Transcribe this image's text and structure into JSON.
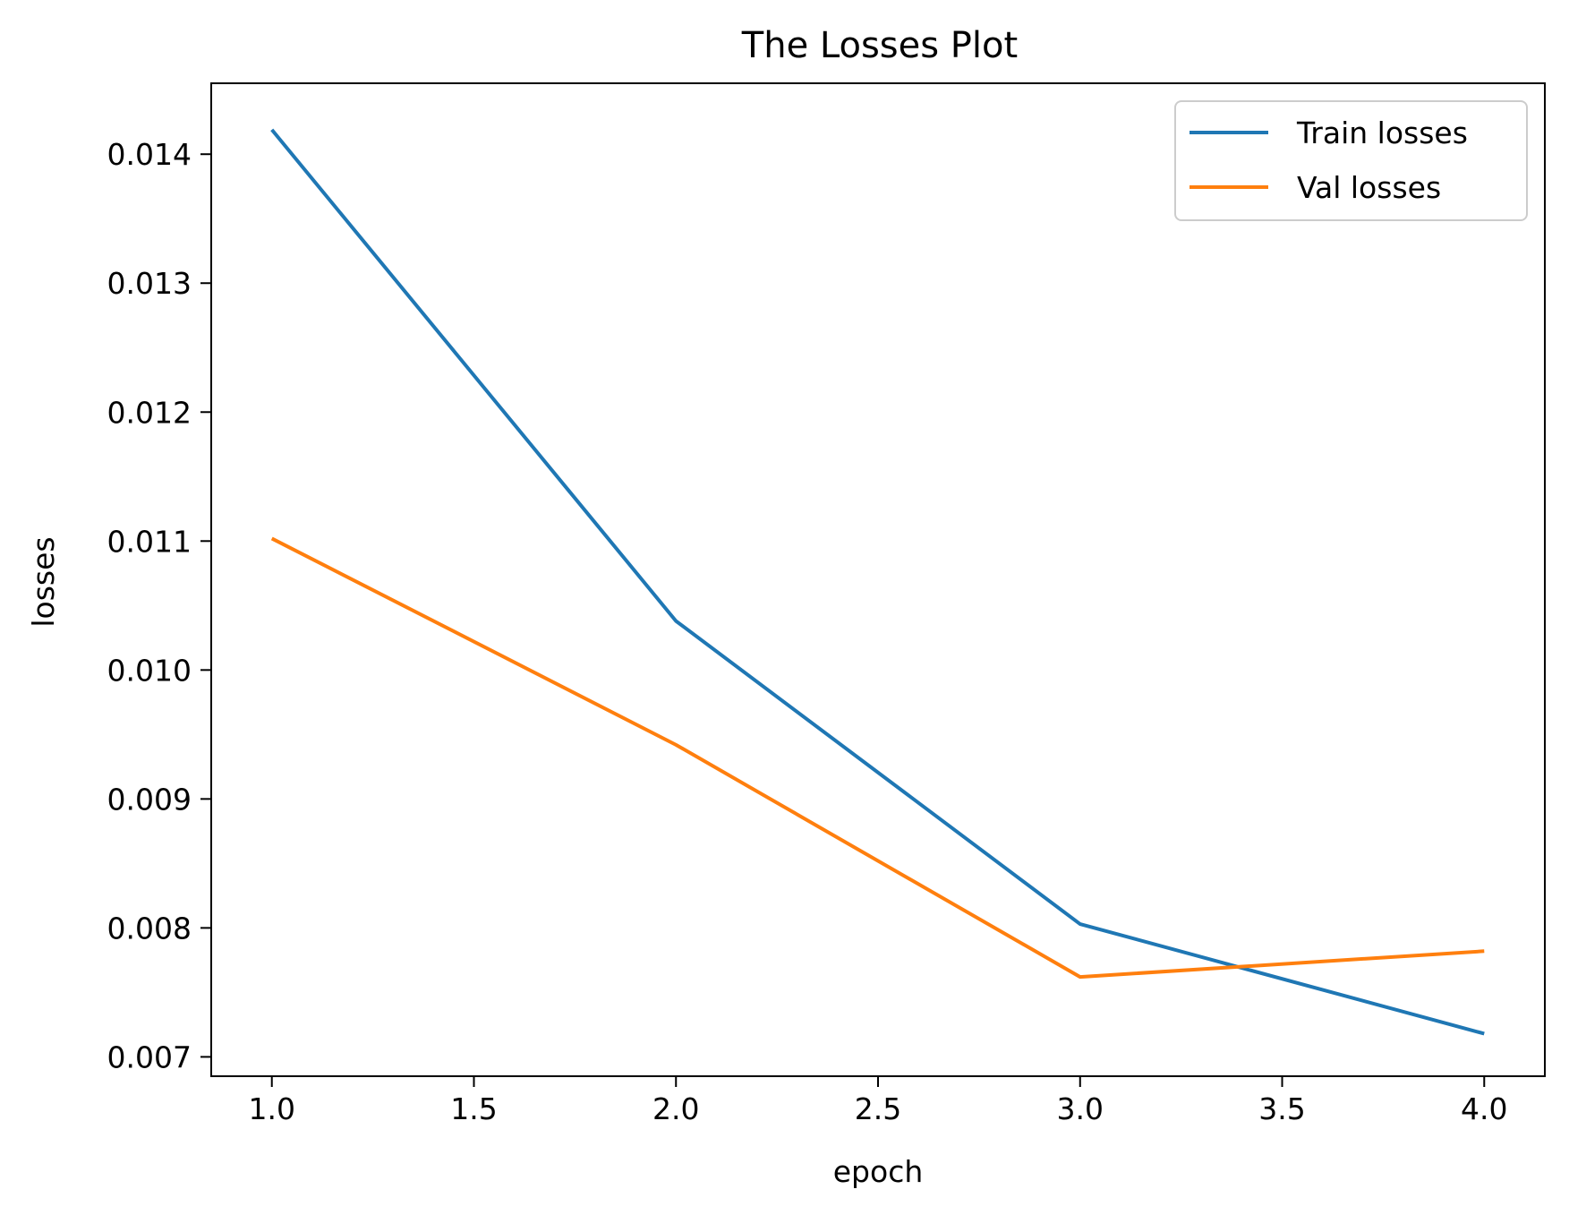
{
  "chart_data": {
    "type": "line",
    "title": "The Losses Plot",
    "xlabel": "epoch",
    "ylabel": "losses",
    "x": [
      1.0,
      2.0,
      3.0,
      4.0
    ],
    "xlim": [
      0.85,
      4.15
    ],
    "ylim": [
      0.00685,
      0.01455
    ],
    "xticks": [
      1.0,
      1.5,
      2.0,
      2.5,
      3.0,
      3.5,
      4.0
    ],
    "xtick_labels": [
      "1.0",
      "1.5",
      "2.0",
      "2.5",
      "3.0",
      "3.5",
      "4.0"
    ],
    "yticks": [
      0.007,
      0.008,
      0.009,
      0.01,
      0.011,
      0.012,
      0.013,
      0.014
    ],
    "ytick_labels": [
      "0.007",
      "0.008",
      "0.009",
      "0.010",
      "0.011",
      "0.012",
      "0.013",
      "0.014"
    ],
    "grid": false,
    "legend_position": "top-right",
    "series": [
      {
        "name": "Train losses",
        "color": "#1f77b4",
        "values": [
          0.01419,
          0.01038,
          0.00803,
          0.00718
        ]
      },
      {
        "name": "Val losses",
        "color": "#ff7f0e",
        "values": [
          0.01102,
          0.00942,
          0.00762,
          0.00782
        ]
      }
    ]
  }
}
